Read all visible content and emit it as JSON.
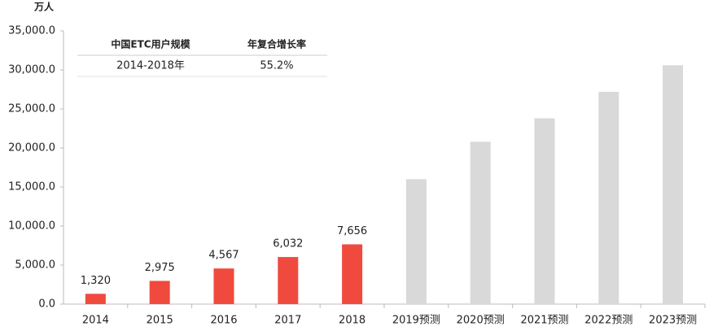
{
  "chart_data": {
    "type": "bar",
    "y_unit": "万人",
    "categories": [
      "2014",
      "2015",
      "2016",
      "2017",
      "2018",
      "2019预测",
      "2020预测",
      "2021预测",
      "2022预测",
      "2023预测"
    ],
    "values": [
      1320,
      2975,
      4567,
      6032,
      7656,
      16000,
      20800,
      23800,
      27200,
      30600
    ],
    "value_labels": [
      "1,320",
      "2,975",
      "4,567",
      "6,032",
      "7,656",
      null,
      null,
      null,
      null,
      null
    ],
    "colors": [
      "#f04a3e",
      "#f04a3e",
      "#f04a3e",
      "#f04a3e",
      "#f04a3e",
      "#d9d9d9",
      "#d9d9d9",
      "#d9d9d9",
      "#d9d9d9",
      "#d9d9d9"
    ],
    "ylim": [
      0,
      35000
    ],
    "yticks": [
      {
        "value": 0,
        "label": "0.0"
      },
      {
        "value": 5000,
        "label": "5,000.0"
      },
      {
        "value": 10000,
        "label": "10,000.0"
      },
      {
        "value": 15000,
        "label": "15,000.0"
      },
      {
        "value": 20000,
        "label": "20,000.0"
      },
      {
        "value": 25000,
        "label": "25,000.0"
      },
      {
        "value": 30000,
        "label": "30,000.0"
      },
      {
        "value": 35000,
        "label": "35,000.0"
      }
    ],
    "inset_table": {
      "header": [
        "中国ETC用户规模",
        "年复合增长率"
      ],
      "rows": [
        [
          "2014-2018年",
          "55.2%"
        ]
      ]
    }
  }
}
